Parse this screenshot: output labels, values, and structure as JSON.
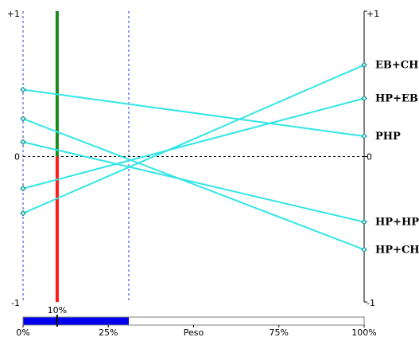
{
  "chart_data": {
    "type": "line",
    "x_axis": {
      "label": "Peso",
      "range": [
        0,
        100
      ],
      "ticks": [
        {
          "value": 0,
          "label": "0%"
        },
        {
          "value": 25,
          "label": "25%"
        },
        {
          "value": 75,
          "label": "75%"
        },
        {
          "value": 100,
          "label": "100%"
        }
      ]
    },
    "y_axis": {
      "range": [
        -1,
        1
      ],
      "ticks": [
        {
          "value": 1,
          "label": "+1"
        },
        {
          "value": 0,
          "label": "0"
        },
        {
          "value": -1,
          "label": "-1"
        }
      ]
    },
    "current_weight": {
      "value": 10,
      "label": "10%"
    },
    "weight_range": [
      0,
      31
    ],
    "weight_slider_fill_to": 31,
    "series": [
      {
        "name": "EB+CH",
        "values": [
          -0.39,
          0.63
        ]
      },
      {
        "name": "HP+EB",
        "values": [
          -0.22,
          0.4
        ]
      },
      {
        "name": "PHP",
        "values": [
          0.46,
          0.14
        ]
      },
      {
        "name": "HP+HP",
        "values": [
          0.1,
          -0.45
        ]
      },
      {
        "name": "HP+CH",
        "values": [
          0.26,
          -0.64
        ]
      }
    ],
    "colors": {
      "series_line": "#33e6e6",
      "marker_stroke": "#007a7a",
      "marker_fill": "#aef7f7",
      "indicator_positive": "#1a8a1a",
      "indicator_negative": "#ff1a1a",
      "slider_fill": "#0000ee",
      "dashed_range": "#2d3ad8"
    }
  }
}
